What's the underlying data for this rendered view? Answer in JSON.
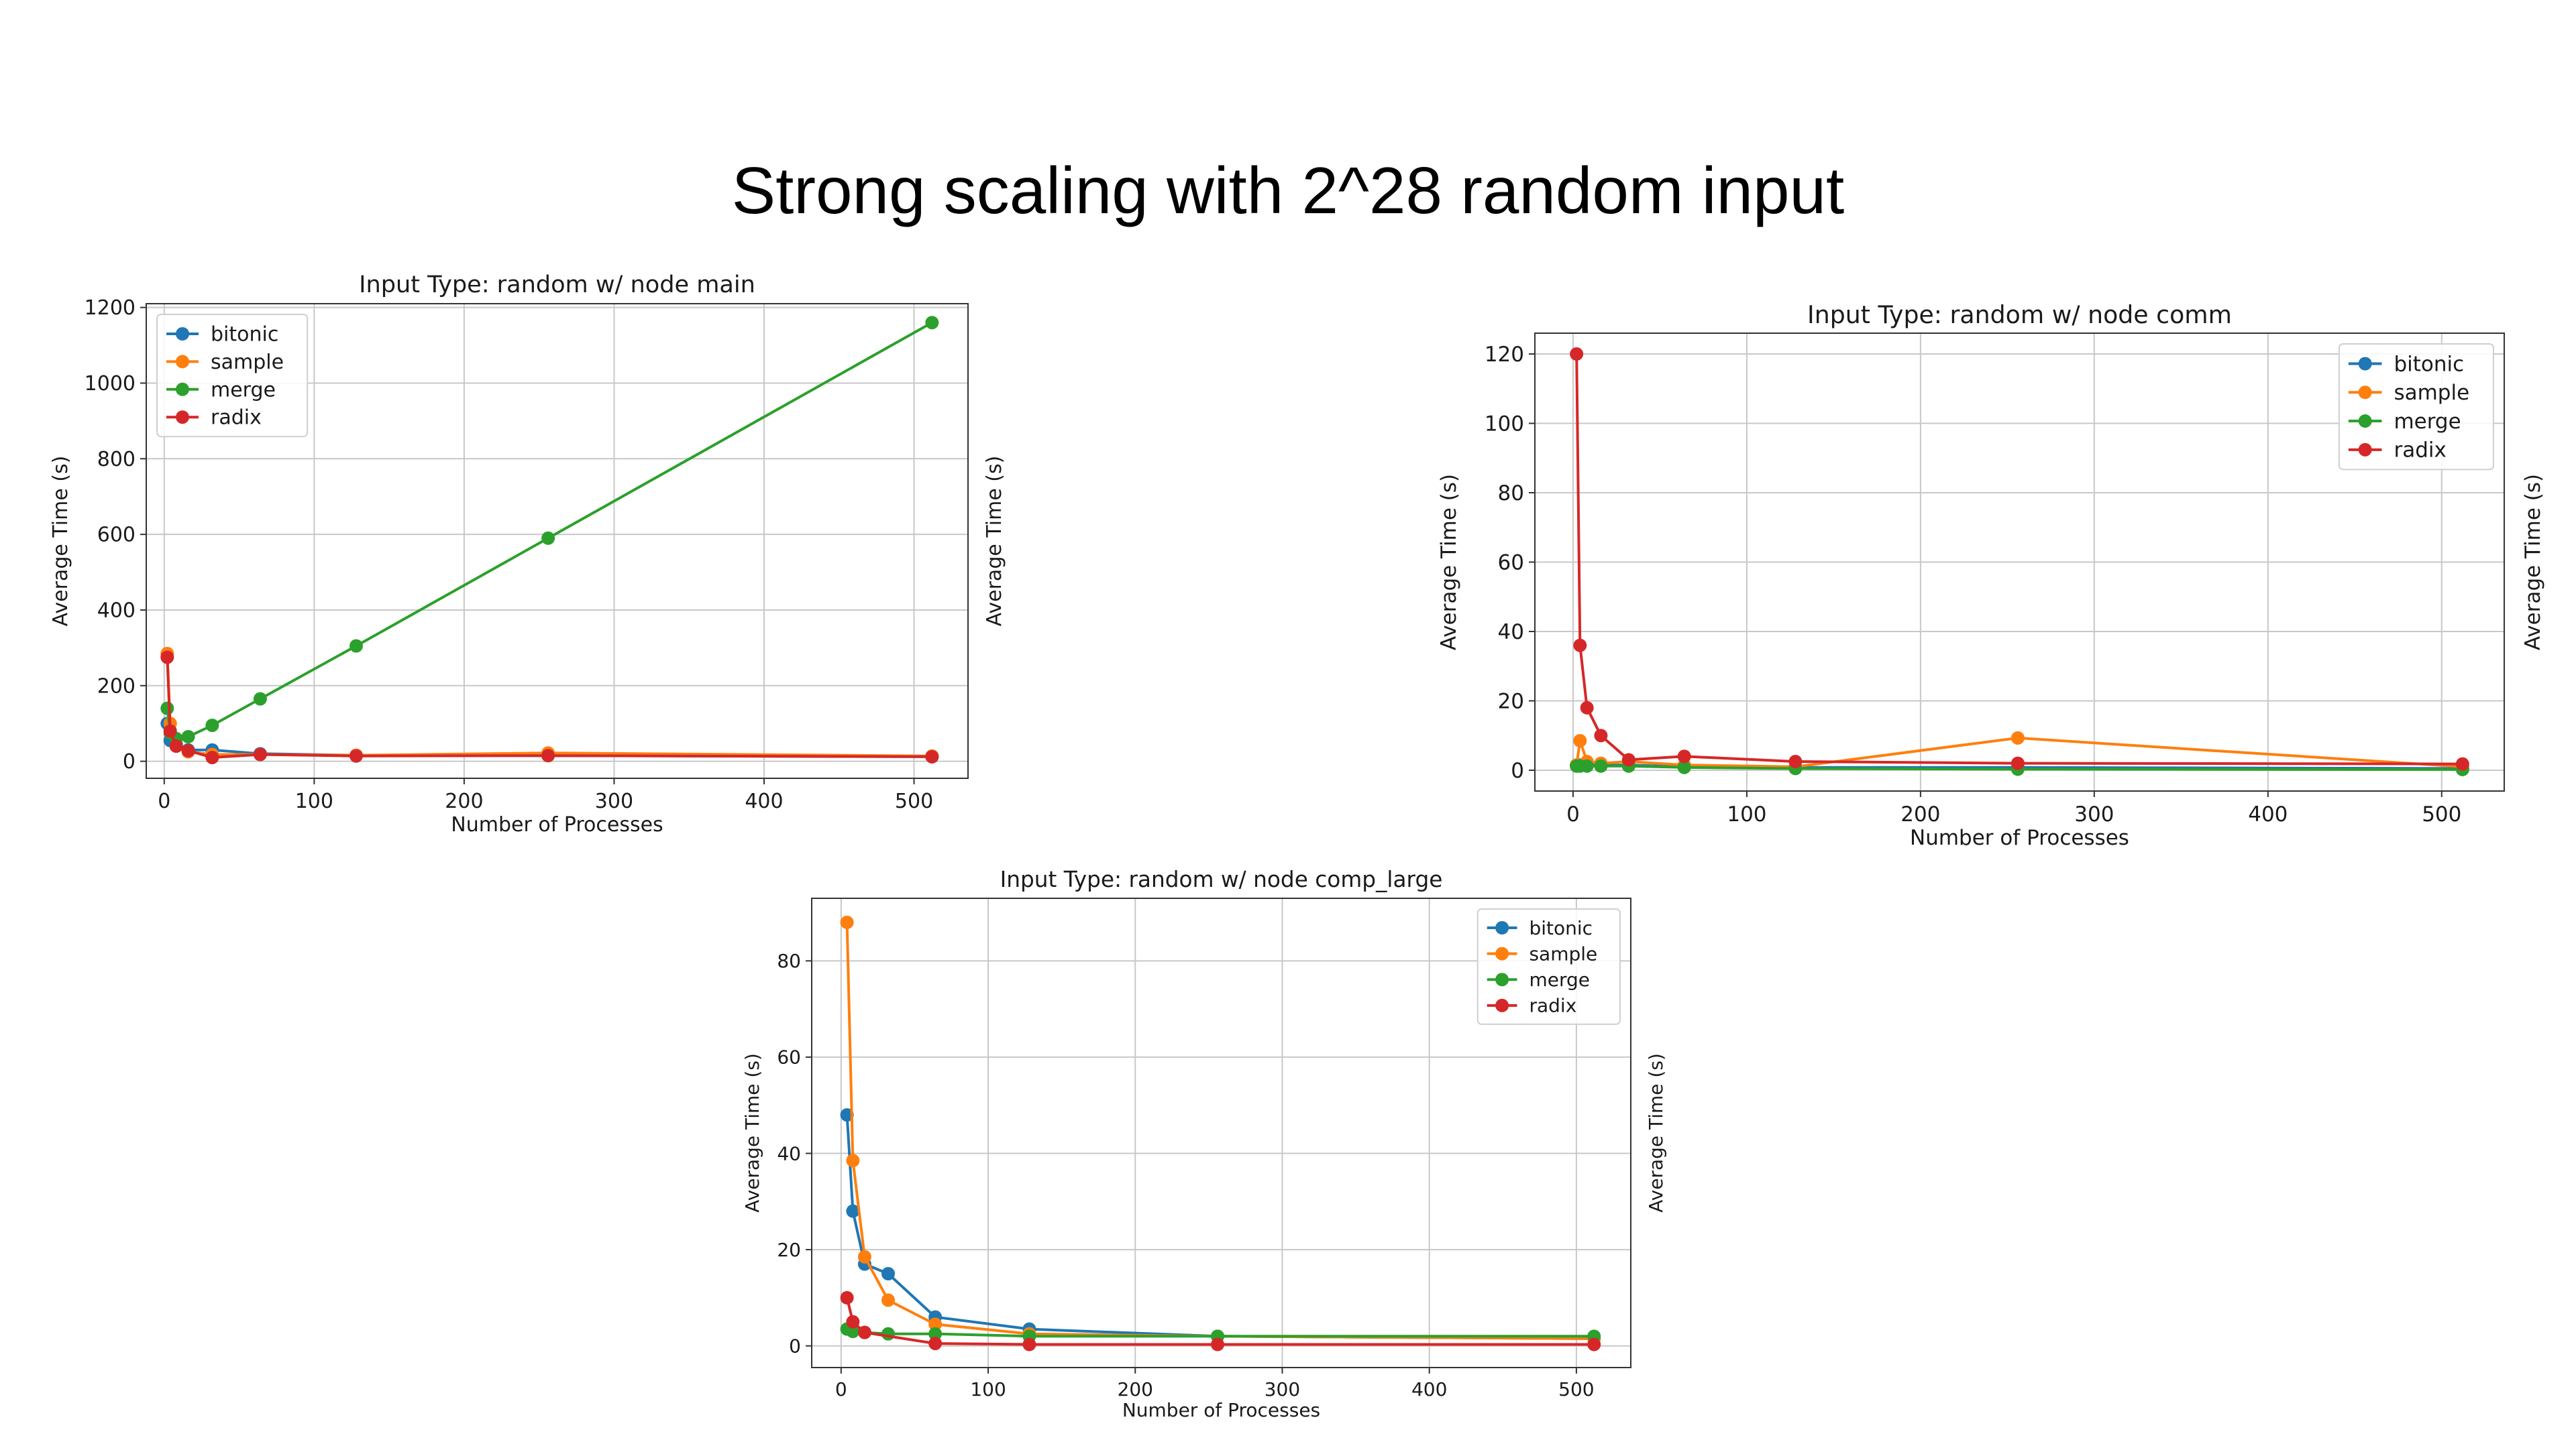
{
  "slide_title": "Strong scaling with 2^28 random input",
  "series_colors": {
    "bitonic": "#1f77b4",
    "sample": "#ff7f0e",
    "merge": "#2ca02c",
    "radix": "#d62728"
  },
  "chart_data": [
    {
      "type": "line",
      "title": "Input Type: random w/ node main",
      "xlabel": "Number of Processes",
      "ylabel": "Average Time (s)",
      "right_ylabel": "Average Time (s)",
      "xlim": [
        -12,
        536
      ],
      "ylim": [
        -45,
        1210
      ],
      "xticks": [
        0,
        100,
        200,
        300,
        400,
        500
      ],
      "yticks": [
        0,
        200,
        400,
        600,
        800,
        1000,
        1200
      ],
      "grid": true,
      "legend": "upper left",
      "series": [
        {
          "name": "bitonic",
          "x": [
            2,
            4,
            8,
            16,
            32,
            64,
            128,
            256,
            512
          ],
          "y": [
            100,
            55,
            45,
            30,
            30,
            20,
            16,
            15,
            12
          ]
        },
        {
          "name": "sample",
          "x": [
            2,
            4,
            8,
            16,
            32,
            64,
            128,
            256,
            512
          ],
          "y": [
            285,
            100,
            40,
            25,
            18,
            18,
            16,
            22,
            14
          ]
        },
        {
          "name": "merge",
          "x": [
            2,
            4,
            8,
            16,
            32,
            64,
            128,
            256,
            512
          ],
          "y": [
            140,
            75,
            60,
            65,
            95,
            165,
            305,
            590,
            1160
          ]
        },
        {
          "name": "radix",
          "x": [
            2,
            4,
            8,
            16,
            32,
            64,
            128,
            256,
            512
          ],
          "y": [
            275,
            80,
            40,
            28,
            10,
            18,
            14,
            15,
            12
          ]
        }
      ]
    },
    {
      "type": "line",
      "title": "Input Type: random w/ node comm",
      "xlabel": "Number of Processes",
      "ylabel": "Average Time (s)",
      "right_ylabel": "Average Time (s)",
      "xlim": [
        -22,
        536
      ],
      "ylim": [
        -6,
        126
      ],
      "xticks": [
        0,
        100,
        200,
        300,
        400,
        500
      ],
      "yticks": [
        0,
        20,
        40,
        60,
        80,
        100,
        120
      ],
      "grid": true,
      "legend": "upper right",
      "series": [
        {
          "name": "bitonic",
          "x": [
            2,
            4,
            8,
            16,
            32,
            64,
            128,
            256,
            512
          ],
          "y": [
            1.5,
            1.5,
            1.5,
            1.5,
            1.5,
            1.0,
            0.8,
            0.8,
            0.5
          ]
        },
        {
          "name": "sample",
          "x": [
            2,
            4,
            8,
            16,
            32,
            64,
            128,
            256,
            512
          ],
          "y": [
            1.5,
            8.5,
            2.5,
            2.0,
            2.5,
            1.5,
            1.0,
            9.3,
            1.0
          ]
        },
        {
          "name": "merge",
          "x": [
            2,
            4,
            8,
            16,
            32,
            64,
            128,
            256,
            512
          ],
          "y": [
            1.2,
            1.2,
            1.2,
            1.2,
            1.2,
            0.8,
            0.5,
            0.3,
            0.2
          ]
        },
        {
          "name": "radix",
          "x": [
            2,
            4,
            8,
            16,
            32,
            64,
            128,
            256,
            512
          ],
          "y": [
            120,
            36,
            18,
            10,
            3,
            4,
            2.5,
            2,
            1.8
          ]
        }
      ]
    },
    {
      "type": "line",
      "title": "Input Type: random w/ node comp_large",
      "xlabel": "Number of Processes",
      "ylabel": "Average Time (s)",
      "right_ylabel": "Average Time (s)",
      "xlim": [
        -20,
        537
      ],
      "ylim": [
        -4.5,
        93
      ],
      "xticks": [
        0,
        100,
        200,
        300,
        400,
        500
      ],
      "yticks": [
        0,
        20,
        40,
        60,
        80
      ],
      "grid": true,
      "legend": "upper right",
      "series": [
        {
          "name": "bitonic",
          "x": [
            4,
            8,
            16,
            32,
            64,
            128,
            256,
            512
          ],
          "y": [
            48,
            28,
            17,
            15,
            6,
            3.5,
            2.0,
            1.5
          ]
        },
        {
          "name": "sample",
          "x": [
            4,
            8,
            16,
            32,
            64,
            128,
            256,
            512
          ],
          "y": [
            88,
            38.5,
            18.5,
            9.5,
            4.5,
            2.5,
            2.0,
            1.5
          ]
        },
        {
          "name": "merge",
          "x": [
            4,
            8,
            16,
            32,
            64,
            128,
            256,
            512
          ],
          "y": [
            3.5,
            3.0,
            2.8,
            2.5,
            2.5,
            2.0,
            2.0,
            2.0
          ]
        },
        {
          "name": "radix",
          "x": [
            4,
            8,
            16,
            64,
            128,
            256,
            512
          ],
          "y": [
            10,
            5,
            2.8,
            0.5,
            0.3,
            0.3,
            0.3
          ]
        }
      ]
    }
  ]
}
